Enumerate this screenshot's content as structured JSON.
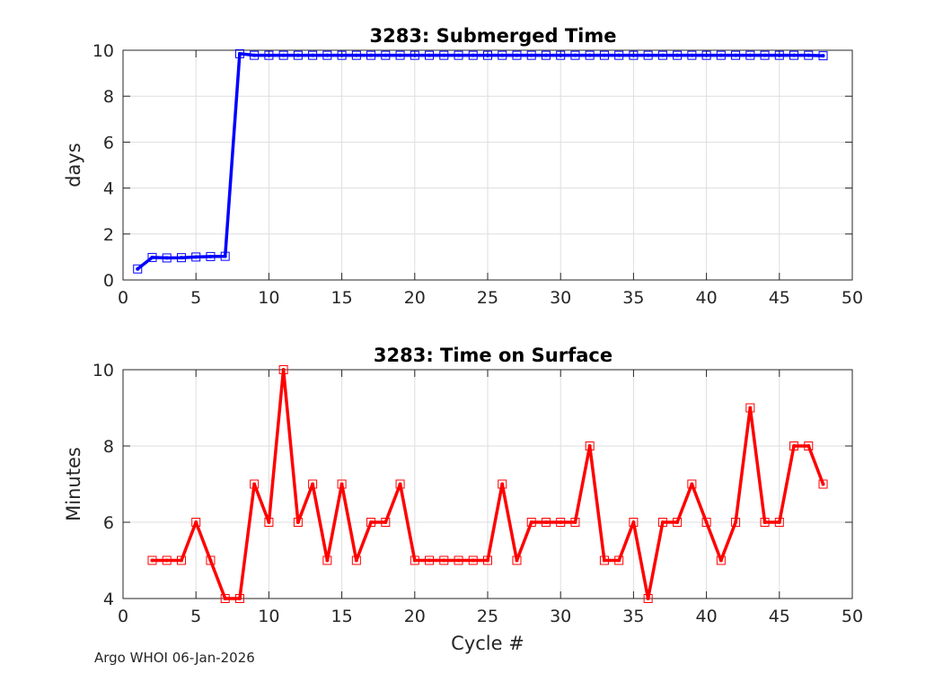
{
  "footer": "Argo WHOI 06-Jan-2026",
  "chart_data": [
    {
      "type": "line",
      "title": "3283: Submerged Time",
      "xlabel": "",
      "ylabel": "days",
      "xlim": [
        0,
        50
      ],
      "ylim": [
        0,
        10
      ],
      "xticks": [
        0,
        5,
        10,
        15,
        20,
        25,
        30,
        35,
        40,
        45,
        50
      ],
      "yticks": [
        0,
        2,
        4,
        6,
        8,
        10
      ],
      "grid": true,
      "color": "#0000ff",
      "marker": "square",
      "series": [
        {
          "name": "Submerged Time",
          "x": [
            1,
            2,
            3,
            4,
            5,
            6,
            7,
            8,
            9,
            10,
            11,
            12,
            13,
            14,
            15,
            16,
            17,
            18,
            19,
            20,
            21,
            22,
            23,
            24,
            25,
            26,
            27,
            28,
            29,
            30,
            31,
            32,
            33,
            34,
            35,
            36,
            37,
            38,
            39,
            40,
            41,
            42,
            43,
            44,
            45,
            46,
            47,
            48
          ],
          "y": [
            0.48,
            0.98,
            0.96,
            0.97,
            1.0,
            1.02,
            1.03,
            9.85,
            9.78,
            9.78,
            9.78,
            9.78,
            9.78,
            9.78,
            9.78,
            9.78,
            9.78,
            9.78,
            9.78,
            9.78,
            9.78,
            9.78,
            9.78,
            9.78,
            9.78,
            9.78,
            9.78,
            9.78,
            9.78,
            9.78,
            9.78,
            9.78,
            9.78,
            9.78,
            9.78,
            9.78,
            9.78,
            9.78,
            9.78,
            9.78,
            9.78,
            9.78,
            9.78,
            9.78,
            9.78,
            9.78,
            9.78,
            9.76
          ]
        }
      ]
    },
    {
      "type": "line",
      "title": "3283: Time on Surface",
      "xlabel": "Cycle #",
      "ylabel": "Minutes",
      "xlim": [
        0,
        50
      ],
      "ylim": [
        4,
        10
      ],
      "xticks": [
        0,
        5,
        10,
        15,
        20,
        25,
        30,
        35,
        40,
        45,
        50
      ],
      "yticks": [
        4,
        6,
        8,
        10
      ],
      "grid": true,
      "color": "#ff0000",
      "marker": "square",
      "series": [
        {
          "name": "Time on Surface",
          "x": [
            2,
            3,
            4,
            5,
            6,
            7,
            8,
            9,
            10,
            11,
            12,
            13,
            14,
            15,
            16,
            17,
            18,
            19,
            20,
            21,
            22,
            23,
            24,
            25,
            26,
            27,
            28,
            29,
            30,
            31,
            32,
            33,
            34,
            35,
            36,
            37,
            38,
            39,
            40,
            41,
            42,
            43,
            44,
            45,
            46,
            47,
            48
          ],
          "y": [
            5,
            5,
            5,
            6,
            5,
            4,
            4,
            7,
            6,
            10,
            6,
            7,
            5,
            7,
            5,
            6,
            6,
            7,
            5,
            5,
            5,
            5,
            5,
            5,
            7,
            5,
            6,
            6,
            6,
            6,
            8,
            5,
            5,
            6,
            4,
            6,
            6,
            7,
            6,
            5,
            6,
            9,
            6,
            6,
            8,
            8,
            7
          ]
        }
      ]
    }
  ]
}
